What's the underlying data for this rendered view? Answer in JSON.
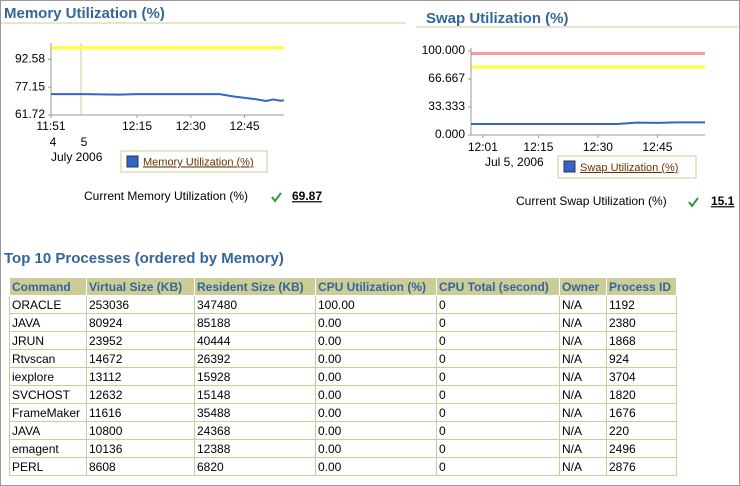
{
  "chart_data": [
    {
      "type": "line",
      "title": "Memory Utilization (%)",
      "x": [
        "11:51",
        "12:00",
        "12:10",
        "12:15",
        "12:30",
        "12:38",
        "12:42",
        "12:48",
        "12:51",
        "12:53",
        "12:55",
        "12:56"
      ],
      "series": [
        {
          "name": "Memory Utilization (%)",
          "color": "#3366cc",
          "values": [
            73.3,
            73.3,
            73.0,
            73.3,
            73.3,
            73.3,
            72.0,
            70.5,
            69.5,
            70.3,
            69.6,
            69.87
          ]
        }
      ],
      "xlim": [
        "11:51",
        "12:56"
      ],
      "xticks": [
        "11:51",
        "12:15",
        "12:30",
        "12:45"
      ],
      "x_day_labels": [
        "4",
        "5"
      ],
      "x_date_label": "July 2006",
      "ylim": [
        61.72,
        100
      ],
      "yticks": [
        92.58,
        77.15,
        61.72
      ],
      "thresholds": [
        {
          "value": 99,
          "color": "#ffff33"
        }
      ],
      "current_label": "Current Memory Utilization (%)",
      "current_value": 69.87
    },
    {
      "type": "line",
      "title": "Swap Utilization (%)",
      "x": [
        "11:58",
        "12:35",
        "12:40",
        "12:45",
        "12:50",
        "12:57"
      ],
      "series": [
        {
          "name": "Swap Utilization (%)",
          "color": "#3366cc",
          "values": [
            13.1,
            13.1,
            14.8,
            14.5,
            15.1,
            15.1
          ]
        }
      ],
      "xlim": [
        "11:58",
        "12:57"
      ],
      "xticks": [
        "12:01",
        "12:15",
        "12:30",
        "12:45"
      ],
      "x_date_label": "Jul 5, 2006",
      "ylim": [
        0,
        100
      ],
      "yticks": [
        {
          "value": 100,
          "label": "100.000"
        },
        {
          "value": 66.667,
          "label": "66.667"
        },
        {
          "value": 33.333,
          "label": "33.333"
        },
        {
          "value": 0,
          "label": "0.000"
        }
      ],
      "thresholds": [
        {
          "value": 97,
          "color": "#ff9999"
        },
        {
          "value": 81,
          "color": "#ffff33"
        }
      ],
      "current_label": "Current Swap Utilization (%)",
      "current_value": 15.1
    }
  ],
  "table": {
    "title": "Top 10 Processes (ordered by Memory)",
    "columns": [
      "Command",
      "Virtual Size (KB)",
      "Resident Size (KB)",
      "CPU Utilization (%)",
      "CPU Total (second)",
      "Owner",
      "Process ID"
    ],
    "rows": [
      [
        "ORACLE",
        "253036",
        "347480",
        "100.00",
        "0",
        "N/A",
        "1192"
      ],
      [
        "JAVA",
        "80924",
        "85188",
        "0.00",
        "0",
        "N/A",
        "2380"
      ],
      [
        "JRUN",
        "23952",
        "40444",
        "0.00",
        "0",
        "N/A",
        "1868"
      ],
      [
        "Rtvscan",
        "14672",
        "26392",
        "0.00",
        "0",
        "N/A",
        "924"
      ],
      [
        "iexplore",
        "13112",
        "15928",
        "0.00",
        "0",
        "N/A",
        "3704"
      ],
      [
        "SVCHOST",
        "12632",
        "15148",
        "0.00",
        "0",
        "N/A",
        "1820"
      ],
      [
        "FrameMaker",
        "11616",
        "35488",
        "0.00",
        "0",
        "N/A",
        "1676"
      ],
      [
        "JAVA",
        "10800",
        "24368",
        "0.00",
        "0",
        "N/A",
        "220"
      ],
      [
        "emagent",
        "10136",
        "12388",
        "0.00",
        "0",
        "N/A",
        "2496"
      ],
      [
        "PERL",
        "8608",
        "6820",
        "0.00",
        "0",
        "N/A",
        "2876"
      ]
    ]
  }
}
